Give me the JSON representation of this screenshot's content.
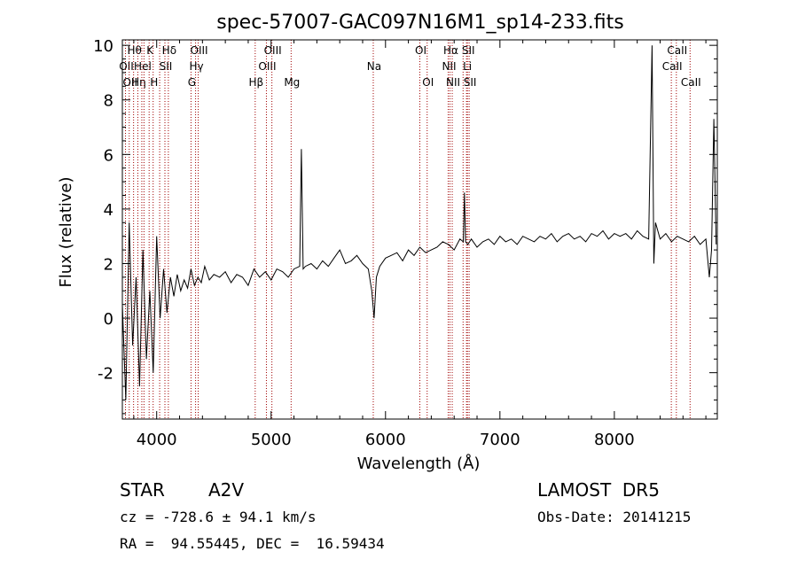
{
  "chart_data": {
    "type": "line",
    "title": "spec-57007-GAC097N16M1_sp14-233.fits",
    "xlabel": "Wavelength (Å)",
    "ylabel": "Flux (relative)",
    "xlim": [
      3700,
      8900
    ],
    "ylim": [
      -3.7,
      10.2
    ],
    "x_ticks": [
      4000,
      5000,
      6000,
      7000,
      8000
    ],
    "y_ticks": [
      -2,
      0,
      2,
      4,
      6,
      8,
      10
    ],
    "grid": false,
    "line_color": "#000000",
    "line_marker_color": "#a00000",
    "series": [
      {
        "x": [
          3700,
          3730,
          3760,
          3790,
          3820,
          3850,
          3880,
          3910,
          3940,
          3970,
          4000,
          4030,
          4060,
          4090,
          4120,
          4150,
          4180,
          4210,
          4240,
          4270,
          4300,
          4330,
          4360,
          4390,
          4420,
          4460,
          4500,
          4550,
          4600,
          4650,
          4700,
          4750,
          4800,
          4850,
          4900,
          4950,
          5000,
          5050,
          5100,
          5150,
          5200,
          5250,
          5265,
          5280,
          5300,
          5350,
          5400,
          5450,
          5500,
          5550,
          5600,
          5650,
          5700,
          5750,
          5800,
          5850,
          5880,
          5900,
          5920,
          5950,
          6000,
          6050,
          6100,
          6150,
          6200,
          6250,
          6300,
          6350,
          6400,
          6450,
          6500,
          6550,
          6600,
          6650,
          6680,
          6690,
          6700,
          6720,
          6750,
          6800,
          6850,
          6900,
          6950,
          7000,
          7050,
          7100,
          7150,
          7200,
          7250,
          7300,
          7350,
          7400,
          7450,
          7500,
          7550,
          7600,
          7650,
          7700,
          7750,
          7800,
          7850,
          7900,
          7950,
          8000,
          8050,
          8100,
          8150,
          8200,
          8250,
          8300,
          8330,
          8345,
          8360,
          8400,
          8450,
          8500,
          8550,
          8600,
          8650,
          8700,
          8750,
          8800,
          8830,
          8850,
          8870,
          8890
        ],
        "y": [
          0.5,
          -3.0,
          3.5,
          -1.0,
          1.5,
          -2.5,
          2.5,
          -1.5,
          1.0,
          -2.0,
          3.0,
          0.0,
          1.8,
          0.2,
          1.5,
          0.8,
          1.6,
          1.0,
          1.4,
          1.1,
          1.8,
          1.2,
          1.5,
          1.3,
          1.9,
          1.4,
          1.6,
          1.5,
          1.7,
          1.3,
          1.6,
          1.5,
          1.2,
          1.8,
          1.5,
          1.7,
          1.4,
          1.8,
          1.7,
          1.5,
          1.8,
          1.9,
          6.2,
          1.8,
          1.9,
          2.0,
          1.8,
          2.1,
          1.9,
          2.2,
          2.5,
          2.0,
          2.1,
          2.3,
          2.0,
          1.8,
          1.0,
          0.0,
          1.5,
          1.9,
          2.2,
          2.3,
          2.4,
          2.1,
          2.5,
          2.3,
          2.6,
          2.4,
          2.5,
          2.6,
          2.8,
          2.7,
          2.5,
          2.9,
          2.8,
          4.6,
          2.8,
          2.7,
          2.9,
          2.6,
          2.8,
          2.9,
          2.7,
          3.0,
          2.8,
          2.9,
          2.7,
          3.0,
          2.9,
          2.8,
          3.0,
          2.9,
          3.1,
          2.8,
          3.0,
          3.1,
          2.9,
          3.0,
          2.8,
          3.1,
          3.0,
          3.2,
          2.9,
          3.1,
          3.0,
          3.1,
          2.9,
          3.2,
          3.0,
          2.9,
          10.0,
          2.0,
          3.5,
          2.9,
          3.1,
          2.8,
          3.0,
          2.9,
          2.8,
          3.0,
          2.7,
          2.9,
          1.5,
          2.5,
          7.3,
          2.7
        ]
      }
    ],
    "line_markers": [
      {
        "x": 3727,
        "label": "OII",
        "row": 1
      },
      {
        "x": 3760,
        "label": "OII",
        "row": 2
      },
      {
        "x": 3798,
        "label": "Hθ",
        "row": 0
      },
      {
        "x": 3835,
        "label": "Hη",
        "row": 2
      },
      {
        "x": 3870,
        "label": "Hel",
        "row": 1
      },
      {
        "x": 3889,
        "label": "",
        "row": 0
      },
      {
        "x": 3934,
        "label": "K",
        "row": 0
      },
      {
        "x": 3969,
        "label": "H",
        "row": 2
      },
      {
        "x": 4026,
        "label": "",
        "row": 1
      },
      {
        "x": 4072,
        "label": "SII",
        "row": 1
      },
      {
        "x": 4102,
        "label": "Hδ",
        "row": 0
      },
      {
        "x": 4300,
        "label": "G",
        "row": 2
      },
      {
        "x": 4340,
        "label": "Hγ",
        "row": 1
      },
      {
        "x": 4363,
        "label": "OIII",
        "row": 0
      },
      {
        "x": 4861,
        "label": "Hβ",
        "row": 2
      },
      {
        "x": 4959,
        "label": "OIII",
        "row": 1
      },
      {
        "x": 5007,
        "label": "OIII",
        "row": 0
      },
      {
        "x": 5175,
        "label": "Mg",
        "row": 2
      },
      {
        "x": 5893,
        "label": "Na",
        "row": 1
      },
      {
        "x": 6300,
        "label": "OI",
        "row": 0
      },
      {
        "x": 6364,
        "label": "OI",
        "row": 2
      },
      {
        "x": 6548,
        "label": "NII",
        "row": 1
      },
      {
        "x": 6563,
        "label": "Hα",
        "row": 0
      },
      {
        "x": 6583,
        "label": "NII",
        "row": 2
      },
      {
        "x": 6678,
        "label": "",
        "row": 2
      },
      {
        "x": 6708,
        "label": "Li",
        "row": 1
      },
      {
        "x": 6716,
        "label": "SII",
        "row": 0
      },
      {
        "x": 6731,
        "label": "SII",
        "row": 2
      },
      {
        "x": 8498,
        "label": "CaII",
        "row": 1
      },
      {
        "x": 8542,
        "label": "CaII",
        "row": 0
      },
      {
        "x": 8662,
        "label": "CaII",
        "row": 2
      }
    ]
  },
  "info": {
    "object_class": "STAR",
    "subclass": "A2V",
    "survey": "LAMOST  DR5",
    "cz": "cz = -728.6 ± 94.1 km/s",
    "obs_date": "Obs-Date: 20141215",
    "coords": "RA =  94.55445, DEC =  16.59434"
  }
}
